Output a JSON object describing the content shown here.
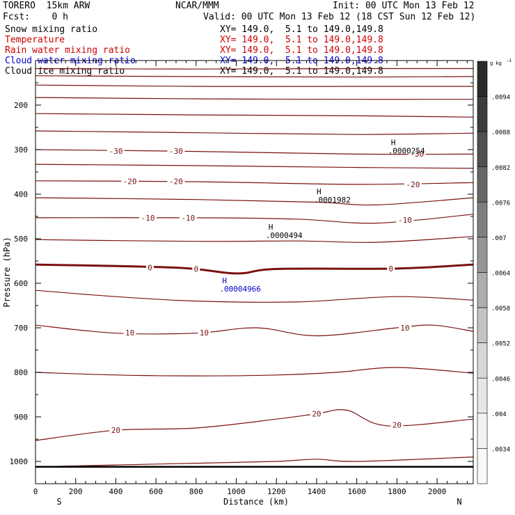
{
  "header": {
    "model": "TORERO  15km ARW",
    "center": "NCAR/MMM",
    "init": "Init: 00 UTC Mon 13 Feb 12",
    "fcst": "Fcst:    0 h",
    "valid": "Valid: 00 UTC Mon 13 Feb 12 (18 CST Sun 12 Feb 12)"
  },
  "series": [
    {
      "name": "Snow mixing ratio",
      "range": "XY= 149.0,  5.1 to 149.0,149.8",
      "color": "#000000"
    },
    {
      "name": "Temperature",
      "range": "XY= 149.0,  5.1 to 149.0,149.8",
      "color": "#cc0000"
    },
    {
      "name": "Rain water mixing ratio",
      "range": "XY= 149.0,  5.1 to 149.0,149.8",
      "color": "#cc0000"
    },
    {
      "name": "Cloud water mixing ratio",
      "range": "XY= 149.0,  5.1 to 149.0,149.8",
      "color": "#0000cc"
    },
    {
      "name": "Cloud ice mixing ratio",
      "range": "XY= 149.0,  5.1 to 149.0,149.8",
      "color": "#000000"
    }
  ],
  "chart_data": {
    "type": "contour",
    "xlabel": "Distance (km)",
    "ylabel": "Pressure (hPa)",
    "xlim": [
      0,
      2180
    ],
    "ylim": [
      1050,
      100
    ],
    "x_ticks": [
      0,
      200,
      400,
      600,
      800,
      1000,
      1200,
      1400,
      1600,
      1800,
      2000
    ],
    "y_ticks": [
      200,
      300,
      400,
      500,
      600,
      700,
      800,
      900,
      1000
    ],
    "x_end_labels": [
      "S",
      "N"
    ],
    "contour_color": "#7a1010",
    "isotherms": [
      {
        "level": "",
        "pts": [
          [
            0,
            118
          ],
          [
            800,
            119
          ],
          [
            1600,
            118
          ],
          [
            2180,
            118
          ]
        ]
      },
      {
        "level": "",
        "pts": [
          [
            0,
            134
          ],
          [
            800,
            136
          ],
          [
            1600,
            137
          ],
          [
            2180,
            136
          ]
        ]
      },
      {
        "level": "",
        "pts": [
          [
            0,
            155
          ],
          [
            800,
            158
          ],
          [
            1600,
            158
          ],
          [
            2180,
            158
          ]
        ]
      },
      {
        "level": "",
        "pts": [
          [
            0,
            183
          ],
          [
            800,
            186
          ],
          [
            1600,
            187
          ],
          [
            2180,
            187
          ]
        ]
      },
      {
        "level": "",
        "pts": [
          [
            0,
            219
          ],
          [
            800,
            222
          ],
          [
            1600,
            224
          ],
          [
            2180,
            227
          ]
        ]
      },
      {
        "level": "",
        "pts": [
          [
            0,
            258
          ],
          [
            800,
            262
          ],
          [
            1600,
            266
          ],
          [
            2180,
            263
          ]
        ]
      },
      {
        "level": "-30",
        "pts": [
          [
            0,
            300
          ],
          [
            800,
            304
          ],
          [
            1600,
            310
          ],
          [
            2180,
            310
          ]
        ]
      },
      {
        "level": "",
        "pts": [
          [
            0,
            333
          ],
          [
            800,
            336
          ],
          [
            1600,
            340
          ],
          [
            2180,
            342
          ]
        ]
      },
      {
        "level": "-20",
        "pts": [
          [
            0,
            370
          ],
          [
            800,
            372
          ],
          [
            1600,
            378
          ],
          [
            2180,
            374
          ]
        ]
      },
      {
        "level": "",
        "pts": [
          [
            0,
            408
          ],
          [
            800,
            412
          ],
          [
            1400,
            418
          ],
          [
            1700,
            424
          ],
          [
            2180,
            408
          ]
        ]
      },
      {
        "level": "-10",
        "pts": [
          [
            0,
            453
          ],
          [
            800,
            453
          ],
          [
            1300,
            456
          ],
          [
            1700,
            465
          ],
          [
            2180,
            445
          ]
        ]
      },
      {
        "level": "",
        "pts": [
          [
            0,
            502
          ],
          [
            800,
            506
          ],
          [
            1300,
            505
          ],
          [
            1700,
            508
          ],
          [
            2180,
            495
          ]
        ]
      },
      {
        "level": "0",
        "pts": [
          [
            0,
            558
          ],
          [
            700,
            565
          ],
          [
            1000,
            578
          ],
          [
            1200,
            568
          ],
          [
            1800,
            567
          ],
          [
            2180,
            558
          ]
        ]
      },
      {
        "level": "",
        "pts": [
          [
            0,
            616
          ],
          [
            400,
            630
          ],
          [
            800,
            640
          ],
          [
            1300,
            642
          ],
          [
            1800,
            630
          ],
          [
            2180,
            638
          ]
        ]
      },
      {
        "level": "10",
        "pts": [
          [
            0,
            694
          ],
          [
            400,
            712
          ],
          [
            800,
            712
          ],
          [
            1100,
            700
          ],
          [
            1400,
            718
          ],
          [
            1800,
            700
          ],
          [
            1980,
            694
          ],
          [
            2180,
            708
          ]
        ]
      },
      {
        "level": "",
        "pts": [
          [
            0,
            800
          ],
          [
            400,
            806
          ],
          [
            800,
            808
          ],
          [
            1200,
            806
          ],
          [
            1500,
            800
          ],
          [
            1800,
            789
          ],
          [
            2180,
            802
          ]
        ]
      },
      {
        "level": "20",
        "pts": [
          [
            0,
            953
          ],
          [
            400,
            930
          ],
          [
            800,
            925
          ],
          [
            1200,
            905
          ],
          [
            1400,
            893
          ],
          [
            1550,
            885
          ],
          [
            1750,
            920
          ],
          [
            2180,
            905
          ]
        ]
      },
      {
        "level": "",
        "pts": [
          [
            0,
            1012
          ],
          [
            400,
            1008
          ],
          [
            800,
            1004
          ],
          [
            1200,
            1000
          ],
          [
            1400,
            995
          ],
          [
            1600,
            1000
          ],
          [
            2180,
            990
          ]
        ]
      }
    ],
    "isotherm_labels": [
      {
        "text": "-30",
        "x": 400,
        "p": 303
      },
      {
        "text": "-30",
        "x": 700,
        "p": 303
      },
      {
        "text": "-30",
        "x": 1900,
        "p": 309
      },
      {
        "text": "-20",
        "x": 470,
        "p": 371
      },
      {
        "text": "-20",
        "x": 700,
        "p": 371
      },
      {
        "text": "-20",
        "x": 1880,
        "p": 378
      },
      {
        "text": "-10",
        "x": 560,
        "p": 453
      },
      {
        "text": "-10",
        "x": 760,
        "p": 453
      },
      {
        "text": "-10",
        "x": 1840,
        "p": 458
      },
      {
        "text": "0",
        "x": 570,
        "p": 565
      },
      {
        "text": "0",
        "x": 800,
        "p": 568
      },
      {
        "text": "0",
        "x": 1770,
        "p": 567
      },
      {
        "text": "10",
        "x": 470,
        "p": 711
      },
      {
        "text": "10",
        "x": 840,
        "p": 711
      },
      {
        "text": "10",
        "x": 1840,
        "p": 700
      },
      {
        "text": "20",
        "x": 400,
        "p": 930
      },
      {
        "text": "20",
        "x": 1400,
        "p": 893
      },
      {
        "text": "20",
        "x": 1800,
        "p": 918
      }
    ],
    "maxima": [
      {
        "mark": "H",
        "value": ".0000254",
        "x": 1770,
        "p": 290,
        "color": "#000000"
      },
      {
        "mark": "H",
        "value": ".0001982",
        "x": 1400,
        "p": 400,
        "color": "#000000"
      },
      {
        "mark": "H",
        "value": ".0000494",
        "x": 1160,
        "p": 480,
        "color": "#000000"
      },
      {
        "mark": "H",
        "value": ".00004966",
        "x": 930,
        "p": 600,
        "color": "#0000cc"
      }
    ],
    "surface_pts": [
      [
        0,
        1012
      ],
      [
        2180,
        1012
      ]
    ],
    "colorbar": {
      "unit": "g kg",
      "unit_exp": "−1",
      "ticks": [
        ".0094",
        ".0088",
        ".0082",
        ".0076",
        ".007",
        ".0064",
        ".0058",
        ".0052",
        ".0046",
        ".004",
        ".0034"
      ],
      "shades": [
        "#2b2b2b",
        "#3d3d3d",
        "#505050",
        "#666666",
        "#7e7e7e",
        "#969696",
        "#adadad",
        "#c3c3c3",
        "#d6d6d6",
        "#e6e6e6",
        "#f2f2f2",
        "#fafafa"
      ]
    }
  }
}
